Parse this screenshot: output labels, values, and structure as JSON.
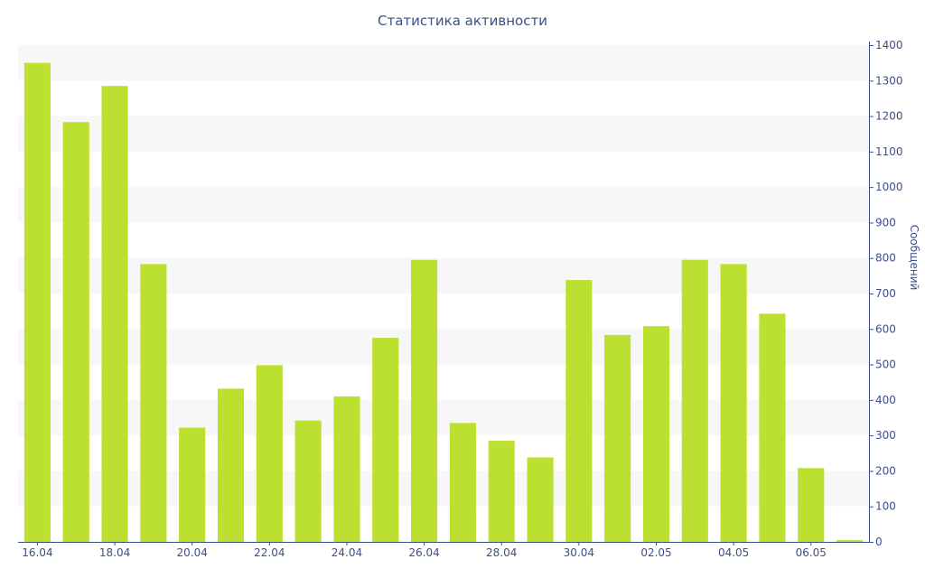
{
  "chart_data": {
    "type": "bar",
    "title": "Статистика активности",
    "xlabel": "",
    "ylabel": "Сообщений",
    "categories": [
      "16.04",
      "17.04",
      "18.04",
      "19.04",
      "20.04",
      "21.04",
      "22.04",
      "23.04",
      "24.04",
      "25.04",
      "26.04",
      "27.04",
      "28.04",
      "29.04",
      "30.04",
      "01.05",
      "02.05",
      "03.05",
      "04.05",
      "05.05",
      "06.05",
      "07.05"
    ],
    "x_tick_labels": [
      "16.04",
      "18.04",
      "20.04",
      "22.04",
      "24.04",
      "26.04",
      "28.04",
      "30.04",
      "02.05",
      "04.05",
      "06.05"
    ],
    "values": [
      1350,
      1183,
      1285,
      783,
      322,
      432,
      498,
      342,
      410,
      575,
      795,
      335,
      285,
      238,
      738,
      583,
      608,
      795,
      783,
      643,
      208,
      5
    ],
    "ylim": [
      0,
      1400
    ],
    "y_ticks": [
      0,
      100,
      200,
      300,
      400,
      500,
      600,
      700,
      800,
      900,
      1000,
      1100,
      1200,
      1300,
      1400
    ],
    "y_axis_side": "right",
    "grid": "alternating horizontal bands",
    "bar_color": "#bbe02f",
    "band_color": "#f7f7f7",
    "axis_color": "#3e4e8a"
  }
}
